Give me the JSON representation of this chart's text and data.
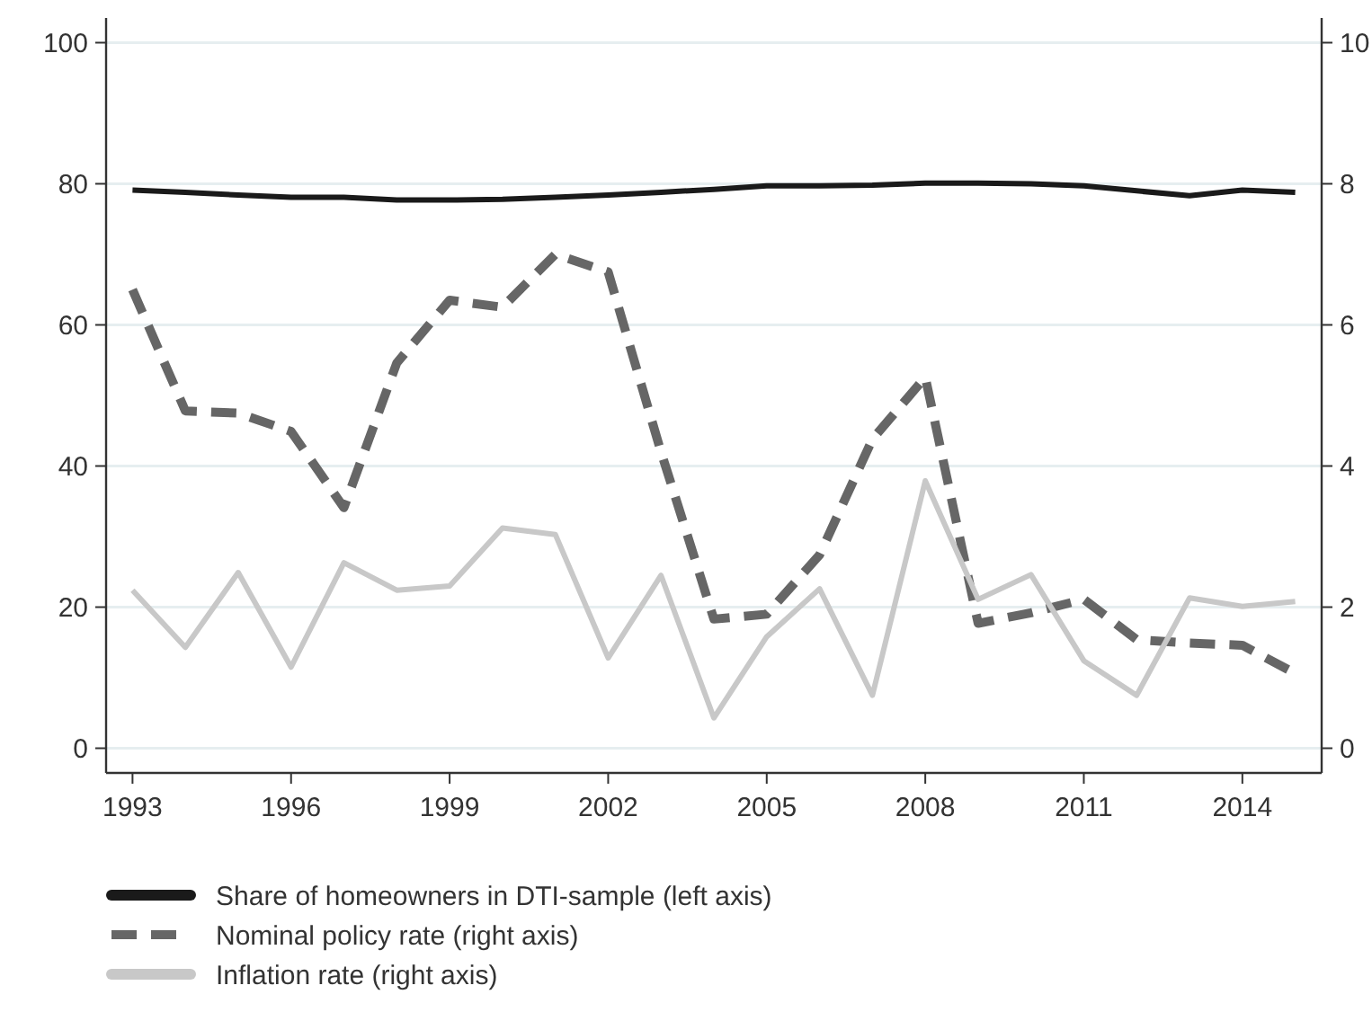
{
  "chart_data": {
    "type": "line",
    "x": [
      1993,
      1994,
      1995,
      1996,
      1997,
      1998,
      1999,
      2000,
      2001,
      2002,
      2003,
      2004,
      2005,
      2006,
      2007,
      2008,
      2009,
      2010,
      2011,
      2012,
      2013,
      2014,
      2015
    ],
    "series": [
      {
        "name": "Share of homeowners in DTI-sample (left axis)",
        "color": "#1a1a1a",
        "line_style": "solid",
        "values": [
          79.1,
          78.8,
          78.4,
          78.1,
          78.1,
          77.7,
          77.7,
          77.8,
          78.1,
          78.4,
          78.8,
          79.2,
          79.7,
          79.7,
          79.8,
          80.1,
          80.1,
          80.0,
          79.7,
          79.0,
          78.3,
          79.1,
          78.8
        ]
      },
      {
        "name": "Nominal policy rate (right axis)",
        "color": "#666666",
        "line_style": "dashed",
        "axis": "y2",
        "values": [
          6.5,
          4.78,
          4.75,
          4.49,
          3.41,
          5.46,
          6.35,
          6.25,
          7.0,
          6.75,
          4.2,
          1.83,
          1.9,
          2.74,
          4.38,
          5.26,
          1.77,
          1.92,
          2.11,
          1.54,
          1.49,
          1.46,
          1.06
        ]
      },
      {
        "name": "Inflation rate (right axis)",
        "color": "#c8c8c8",
        "line_style": "solid",
        "axis": "y2",
        "values": [
          2.24,
          1.43,
          2.49,
          1.15,
          2.63,
          2.24,
          2.3,
          3.12,
          3.03,
          1.28,
          2.45,
          0.43,
          1.58,
          2.26,
          0.75,
          3.79,
          2.11,
          2.46,
          1.24,
          0.75,
          2.13,
          2.01,
          2.08
        ]
      }
    ],
    "xlim": [
      1992.5,
      2015.5
    ],
    "xticks": [
      1993,
      1996,
      1999,
      2002,
      2005,
      2008,
      2011,
      2014
    ],
    "ylim": [
      -3.5,
      103.5
    ],
    "yticks": [
      0,
      20,
      40,
      60,
      80,
      100
    ],
    "y2lim": [
      -0.35,
      10.35
    ],
    "y2ticks": [
      0,
      2,
      4,
      6,
      8,
      10
    ],
    "grid": "y",
    "legend": "bottom",
    "marker": "none"
  }
}
